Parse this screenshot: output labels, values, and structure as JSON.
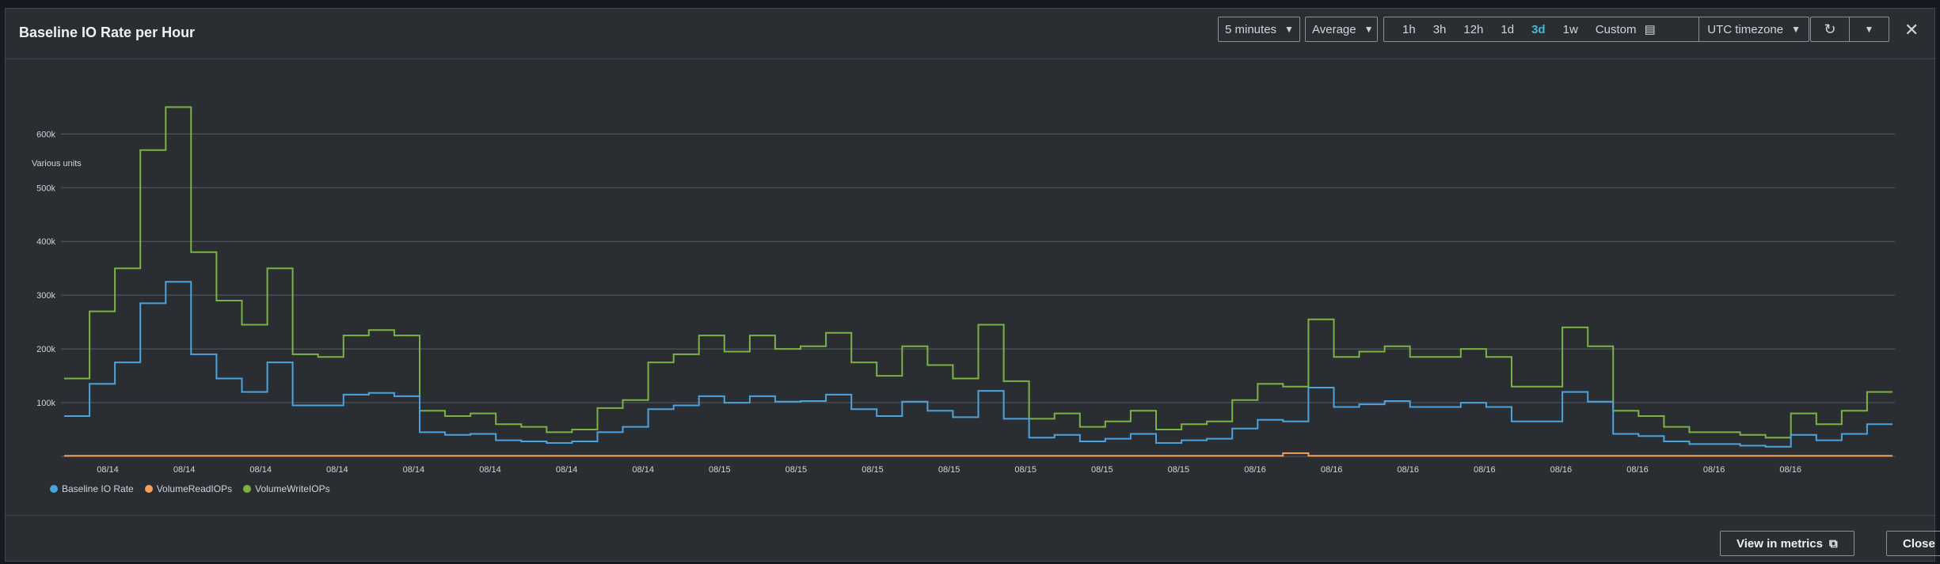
{
  "header": {
    "title": "Baseline IO Rate per Hour",
    "period": "5 minutes",
    "statistic": "Average",
    "ranges": [
      "1h",
      "3h",
      "12h",
      "1d",
      "3d",
      "1w"
    ],
    "active_range": "3d",
    "custom_label": "Custom",
    "timezone": "UTC timezone"
  },
  "footer": {
    "view_in_metrics": "View in metrics",
    "close": "Close"
  },
  "colors": {
    "baseline": "#4aa3df",
    "read": "#f5a05a",
    "write": "#7bb342",
    "grid": "#545b64",
    "text": "#d1d5db"
  },
  "chart_data": {
    "type": "line",
    "ylabel": "Various units",
    "yticks": [
      "100k",
      "200k",
      "300k",
      "400k",
      "500k",
      "600k"
    ],
    "ylim": [
      0,
      680000
    ],
    "xticks": [
      "08/14",
      "08/14",
      "08/14",
      "08/14",
      "08/14",
      "08/14",
      "08/14",
      "08/14",
      "08/15",
      "08/15",
      "08/15",
      "08/15",
      "08/15",
      "08/15",
      "08/15",
      "08/16",
      "08/16",
      "08/16",
      "08/16",
      "08/16",
      "08/16",
      "08/16",
      "08/16"
    ],
    "legend": [
      "Baseline IO Rate",
      "VolumeReadIOPs",
      "VolumeWriteIOPs"
    ],
    "series": [
      {
        "name": "VolumeWriteIOPs",
        "values": [
          145000,
          270000,
          350000,
          570000,
          650000,
          380000,
          290000,
          245000,
          350000,
          190000,
          185000,
          225000,
          235000,
          225000,
          85000,
          75000,
          80000,
          60000,
          55000,
          45000,
          50000,
          90000,
          105000,
          175000,
          190000,
          225000,
          195000,
          225000,
          200000,
          205000,
          230000,
          175000,
          150000,
          205000,
          170000,
          145000,
          245000,
          140000,
          70000,
          80000,
          55000,
          65000,
          85000,
          50000,
          60000,
          65000,
          105000,
          135000,
          130000,
          255000,
          185000,
          195000,
          205000,
          185000,
          185000,
          200000,
          185000,
          130000,
          130000,
          240000,
          205000,
          85000,
          75000,
          55000,
          45000,
          45000,
          40000,
          35000,
          80000,
          60000,
          85000,
          120000
        ]
      },
      {
        "name": "Baseline IO Rate",
        "values": [
          75000,
          135000,
          175000,
          285000,
          325000,
          190000,
          145000,
          120000,
          175000,
          95000,
          95000,
          115000,
          118000,
          112000,
          45000,
          40000,
          42000,
          30000,
          28000,
          25000,
          28000,
          45000,
          55000,
          88000,
          95000,
          112000,
          100000,
          112000,
          102000,
          103000,
          115000,
          88000,
          75000,
          102000,
          85000,
          73000,
          122000,
          70000,
          35000,
          40000,
          28000,
          33000,
          42000,
          25000,
          30000,
          33000,
          52000,
          68000,
          65000,
          128000,
          92000,
          97000,
          103000,
          92000,
          92000,
          100000,
          92000,
          65000,
          65000,
          120000,
          102000,
          42000,
          38000,
          28000,
          23000,
          23000,
          20000,
          18000,
          40000,
          30000,
          42000,
          60000
        ]
      },
      {
        "name": "VolumeReadIOPs",
        "values": [
          1000,
          1000,
          1000,
          1000,
          1000,
          1000,
          1000,
          1000,
          1000,
          1000,
          1000,
          1000,
          1000,
          1000,
          1000,
          1000,
          1000,
          1000,
          1000,
          1000,
          1000,
          1000,
          1000,
          1000,
          1000,
          1000,
          1000,
          1000,
          1000,
          1000,
          1000,
          1000,
          1000,
          1000,
          1000,
          1000,
          1000,
          1000,
          1000,
          1000,
          1000,
          1000,
          1000,
          1000,
          1000,
          1000,
          1000,
          1000,
          6000,
          1000,
          1000,
          1000,
          1000,
          1000,
          1000,
          1000,
          1000,
          1000,
          1000,
          1000,
          1000,
          1000,
          1000,
          1000,
          1000,
          1000,
          1000,
          1000,
          1000,
          1000,
          1000,
          1000
        ]
      }
    ]
  }
}
